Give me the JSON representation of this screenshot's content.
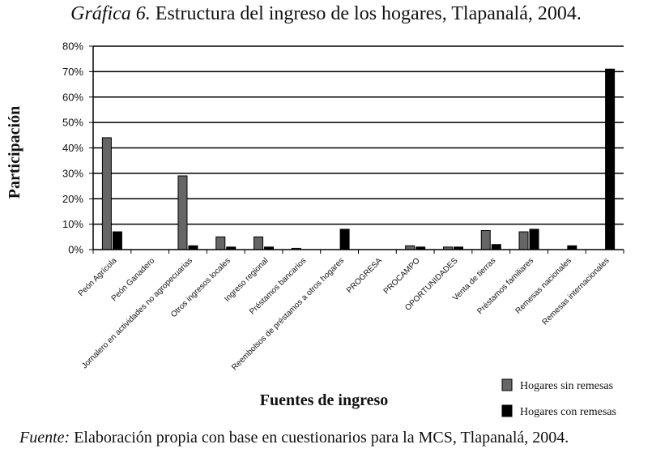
{
  "title_prefix": "Gráfica 6.",
  "title_text": "Estructura del ingreso de los hogares, Tlapanalá, 2004.",
  "source_prefix": "Fuente:",
  "source_text": "Elaboración propia con base en cuestionarios para la MCS, Tlapanalá, 2004.",
  "chart_data": {
    "type": "bar",
    "xlabel": "Fuentes de ingreso",
    "ylabel": "Participación",
    "ylim": [
      0,
      80
    ],
    "yticks": [
      0,
      10,
      20,
      30,
      40,
      50,
      60,
      70,
      80
    ],
    "ytick_labels": [
      "0%",
      "10%",
      "20%",
      "30%",
      "40%",
      "50%",
      "60%",
      "70%",
      "80%"
    ],
    "grid": true,
    "legend_position": "bottom-right",
    "categories": [
      "Peón Agrícola",
      "Peón Ganadero",
      "Jornalero en actividades no agropecuarias",
      "Otros ingresos locales",
      "Ingreso regional",
      "Préstamos bancarios",
      "Reembolsos de préstamos a otros hogares",
      "PROGRESA",
      "PROCAMPO",
      "OPORTUNIDADES",
      "Venta de tierras",
      "Préstamos familiares",
      "Remesas nacionales",
      "Remesas internacionales"
    ],
    "series": [
      {
        "name": "Hogares sin remesas",
        "color": "#666666",
        "values": [
          44,
          0,
          29,
          5,
          5,
          0.5,
          0,
          0,
          1.5,
          1,
          7.5,
          7,
          0,
          0
        ]
      },
      {
        "name": "Hogares con remesas",
        "color": "#000000",
        "values": [
          7,
          0,
          1.5,
          1,
          1,
          0,
          8,
          0,
          1,
          1,
          2,
          8,
          1.5,
          71
        ]
      }
    ]
  }
}
